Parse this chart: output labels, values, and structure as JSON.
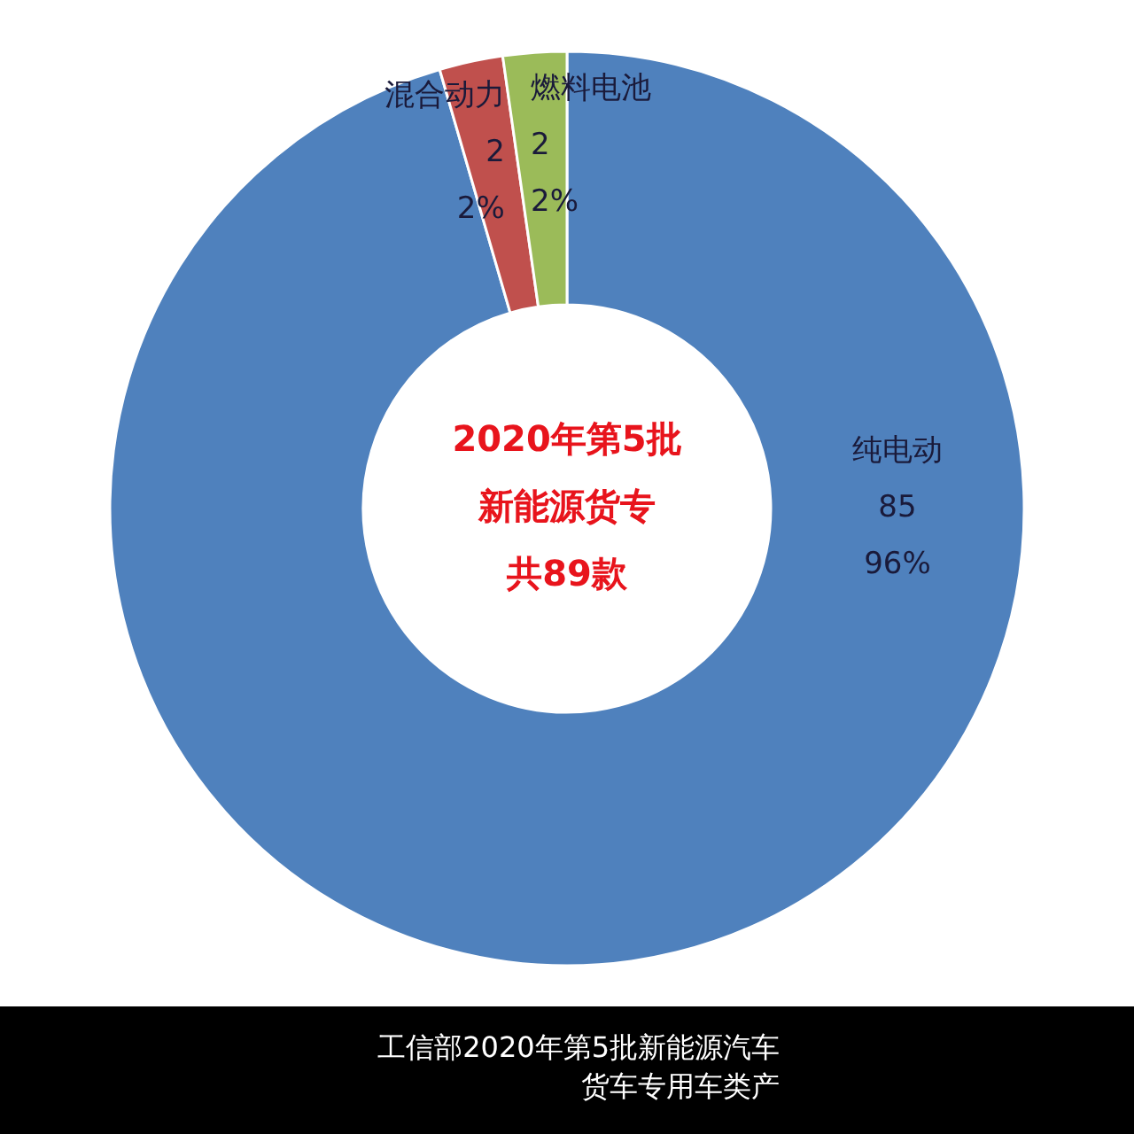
{
  "chart_data": {
    "type": "donut",
    "title": "2020年第5批新能源货专",
    "subtitle": "共89款",
    "categories": [
      "纯电动",
      "混合动力",
      "燃料电池"
    ],
    "values": [
      85,
      2,
      2
    ],
    "colors": [
      "#4f81bd",
      "#c0504d",
      "#9bbb59"
    ],
    "value_labels": [
      "85\n96%",
      "2\n2%",
      "2\n2%"
    ],
    "annotations": [
      "工信部2020年第5批新能源汽车货车专用车类产"
    ]
  }
}
